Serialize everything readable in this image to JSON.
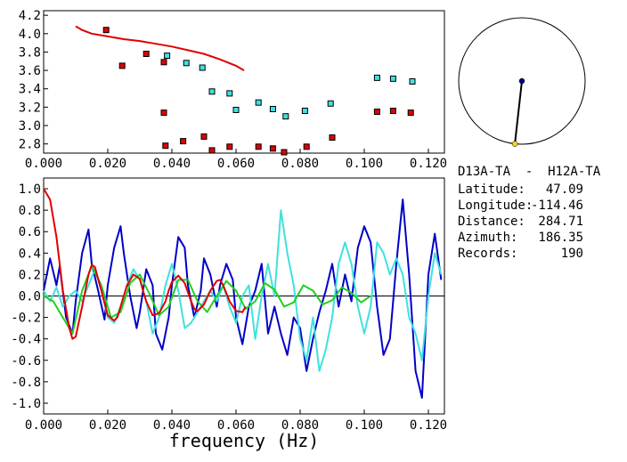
{
  "chart_data": [
    {
      "type": "scatter",
      "xlim": [
        0.0,
        0.125
      ],
      "ylim": [
        2.7,
        4.25
      ],
      "xticks": [
        "0.000",
        "0.020",
        "0.040",
        "0.060",
        "0.080",
        "0.100",
        "0.120"
      ],
      "yticks": [
        "2.8",
        "3.0",
        "3.2",
        "3.4",
        "3.6",
        "3.8",
        "4.0",
        "4.2"
      ],
      "grid": false,
      "colors": {
        "curve": "#e00000",
        "red_points": "#e00000",
        "cyan_points": "#40e0e0",
        "point_edge": "#000000"
      },
      "series": [
        {
          "kind": "line",
          "x": [
            0.01,
            0.012,
            0.015,
            0.02,
            0.025,
            0.03,
            0.035,
            0.04,
            0.045,
            0.05,
            0.055,
            0.06,
            0.0625
          ],
          "y": [
            4.08,
            4.04,
            4.0,
            3.97,
            3.94,
            3.92,
            3.89,
            3.86,
            3.82,
            3.78,
            3.72,
            3.65,
            3.6
          ]
        },
        {
          "kind": "points",
          "x": [
            0.0195,
            0.0245,
            0.032,
            0.0375,
            0.0375,
            0.038,
            0.0435,
            0.05,
            0.0525,
            0.058,
            0.067,
            0.0715,
            0.075,
            0.082,
            0.09,
            0.104,
            0.109,
            0.1145
          ],
          "y": [
            4.04,
            3.65,
            3.78,
            3.69,
            3.14,
            2.78,
            2.83,
            2.88,
            2.73,
            2.77,
            2.77,
            2.75,
            2.71,
            2.77,
            2.87,
            3.15,
            3.16,
            3.14
          ]
        },
        {
          "kind": "points",
          "x": [
            0.0385,
            0.0445,
            0.0495,
            0.0525,
            0.058,
            0.06,
            0.067,
            0.0715,
            0.0755,
            0.0815,
            0.0895,
            0.104,
            0.109,
            0.115
          ],
          "y": [
            3.76,
            3.68,
            3.63,
            3.37,
            3.35,
            3.17,
            3.25,
            3.18,
            3.1,
            3.16,
            3.24,
            3.52,
            3.51,
            3.48
          ]
        }
      ]
    },
    {
      "type": "line",
      "xlim": [
        0.0,
        0.125
      ],
      "ylim": [
        -1.1,
        1.1
      ],
      "xticks": [
        "0.000",
        "0.020",
        "0.040",
        "0.060",
        "0.080",
        "0.100",
        "0.120"
      ],
      "yticks": [
        "1.0",
        "0.8",
        "0.6",
        "0.4",
        "0.2",
        "0.0",
        "-0.2",
        "-0.4",
        "-0.6",
        "-0.8",
        "-1.0"
      ],
      "xlabel": "frequency (Hz)",
      "grid": false,
      "zero_line": true,
      "colors": {
        "blue": "#0000c8",
        "cyan": "#40e0e0",
        "red": "#e00000",
        "green": "#20d020"
      },
      "series": [
        {
          "kind": "red",
          "x": [
            0.0,
            0.002,
            0.004,
            0.006,
            0.008,
            0.009,
            0.01,
            0.012,
            0.014,
            0.015,
            0.016,
            0.018,
            0.02,
            0.022,
            0.023,
            0.024,
            0.026,
            0.028,
            0.03,
            0.031,
            0.032,
            0.034,
            0.036,
            0.038,
            0.039,
            0.04,
            0.042,
            0.044,
            0.046,
            0.047,
            0.048,
            0.05,
            0.052,
            0.054,
            0.055,
            0.056,
            0.058,
            0.06,
            0.062,
            0.063
          ],
          "y": [
            1.0,
            0.9,
            0.55,
            0.05,
            -0.3,
            -0.4,
            -0.38,
            -0.1,
            0.2,
            0.29,
            0.27,
            0.05,
            -0.18,
            -0.23,
            -0.2,
            -0.1,
            0.1,
            0.2,
            0.16,
            0.05,
            -0.05,
            -0.18,
            -0.16,
            -0.05,
            0.05,
            0.13,
            0.19,
            0.12,
            -0.05,
            -0.12,
            -0.14,
            -0.08,
            0.05,
            0.14,
            0.15,
            0.1,
            -0.05,
            -0.14,
            -0.15,
            -0.1
          ]
        },
        {
          "kind": "green",
          "x": [
            0.0,
            0.003,
            0.006,
            0.009,
            0.012,
            0.015,
            0.018,
            0.021,
            0.024,
            0.027,
            0.03,
            0.033,
            0.036,
            0.039,
            0.042,
            0.045,
            0.048,
            0.051,
            0.054,
            0.057,
            0.06,
            0.063,
            0.066,
            0.069,
            0.072,
            0.075,
            0.078,
            0.081,
            0.084,
            0.087,
            0.09,
            0.093,
            0.096,
            0.099,
            0.102
          ],
          "y": [
            0.0,
            -0.05,
            -0.2,
            -0.35,
            0.05,
            0.28,
            0.1,
            -0.2,
            -0.15,
            0.12,
            0.2,
            0.02,
            -0.18,
            -0.1,
            0.15,
            0.15,
            -0.05,
            -0.15,
            0.0,
            0.14,
            0.05,
            -0.12,
            -0.05,
            0.12,
            0.06,
            -0.1,
            -0.06,
            0.1,
            0.05,
            -0.08,
            -0.04,
            0.08,
            0.03,
            -0.06,
            0.0
          ]
        },
        {
          "kind": "blue",
          "x": [
            0.0,
            0.002,
            0.004,
            0.005,
            0.007,
            0.009,
            0.01,
            0.012,
            0.014,
            0.015,
            0.017,
            0.019,
            0.02,
            0.022,
            0.024,
            0.025,
            0.027,
            0.029,
            0.03,
            0.032,
            0.034,
            0.035,
            0.037,
            0.039,
            0.04,
            0.042,
            0.044,
            0.045,
            0.047,
            0.049,
            0.05,
            0.052,
            0.054,
            0.055,
            0.057,
            0.059,
            0.06,
            0.062,
            0.064,
            0.066,
            0.068,
            0.07,
            0.072,
            0.074,
            0.076,
            0.078,
            0.08,
            0.082,
            0.084,
            0.086,
            0.088,
            0.09,
            0.092,
            0.094,
            0.096,
            0.098,
            0.1,
            0.102,
            0.104,
            0.106,
            0.108,
            0.11,
            0.112,
            0.114,
            0.116,
            0.118,
            0.12,
            0.122,
            0.124
          ],
          "y": [
            0.05,
            0.35,
            0.1,
            0.28,
            -0.2,
            -0.35,
            -0.05,
            0.4,
            0.62,
            0.3,
            0.05,
            -0.22,
            0.1,
            0.45,
            0.65,
            0.4,
            0.0,
            -0.3,
            -0.15,
            0.25,
            0.1,
            -0.35,
            -0.5,
            -0.2,
            0.1,
            0.55,
            0.45,
            0.1,
            -0.2,
            0.05,
            0.35,
            0.2,
            -0.1,
            0.1,
            0.3,
            0.15,
            -0.2,
            -0.45,
            -0.1,
            0.05,
            0.3,
            -0.35,
            -0.1,
            -0.35,
            -0.55,
            -0.2,
            -0.3,
            -0.7,
            -0.4,
            -0.15,
            0.05,
            0.3,
            -0.1,
            0.2,
            -0.05,
            0.45,
            0.65,
            0.5,
            -0.1,
            -0.55,
            -0.4,
            0.3,
            0.9,
            0.2,
            -0.7,
            -0.95,
            0.2,
            0.58,
            0.15
          ]
        },
        {
          "kind": "cyan",
          "x": [
            0.0,
            0.002,
            0.004,
            0.006,
            0.008,
            0.01,
            0.012,
            0.014,
            0.016,
            0.018,
            0.02,
            0.022,
            0.024,
            0.026,
            0.028,
            0.03,
            0.032,
            0.034,
            0.036,
            0.038,
            0.04,
            0.042,
            0.044,
            0.046,
            0.048,
            0.05,
            0.052,
            0.054,
            0.056,
            0.058,
            0.06,
            0.062,
            0.064,
            0.066,
            0.068,
            0.07,
            0.072,
            0.074,
            0.076,
            0.078,
            0.08,
            0.082,
            0.084,
            0.086,
            0.088,
            0.09,
            0.092,
            0.094,
            0.096,
            0.098,
            0.1,
            0.102,
            0.104,
            0.106,
            0.108,
            0.11,
            0.112,
            0.114,
            0.116,
            0.118,
            0.12,
            0.122,
            0.124
          ],
          "y": [
            0.05,
            -0.05,
            0.08,
            -0.1,
            0.0,
            0.05,
            -0.05,
            0.1,
            0.25,
            0.05,
            -0.2,
            -0.25,
            -0.1,
            0.1,
            0.25,
            0.15,
            -0.05,
            -0.35,
            -0.2,
            0.1,
            0.3,
            0.05,
            -0.3,
            -0.25,
            -0.15,
            -0.05,
            0.05,
            -0.05,
            0.1,
            -0.1,
            -0.25,
            0.0,
            0.1,
            -0.4,
            0.0,
            0.3,
            0.0,
            0.8,
            0.4,
            0.1,
            -0.4,
            -0.6,
            -0.2,
            -0.7,
            -0.5,
            -0.2,
            0.3,
            0.5,
            0.3,
            -0.1,
            -0.35,
            -0.1,
            0.5,
            0.4,
            0.2,
            0.35,
            0.2,
            -0.2,
            -0.35,
            -0.6,
            0.0,
            0.4,
            0.2
          ]
        }
      ]
    },
    {
      "type": "polar",
      "azimuth_deg": 186.35,
      "colors": {
        "center": "#000080",
        "end": "#ffd700"
      }
    }
  ],
  "info": {
    "title": "D13A-TA  -  H12A-TA",
    "rows": [
      {
        "label": "Latitude:",
        "value": "47.09"
      },
      {
        "label": "Longitude:",
        "value": "-114.46"
      },
      {
        "label": "Distance:",
        "value": "284.71"
      },
      {
        "label": "Azimuth:",
        "value": "186.35"
      },
      {
        "label": "Records:",
        "value": "190"
      }
    ]
  }
}
